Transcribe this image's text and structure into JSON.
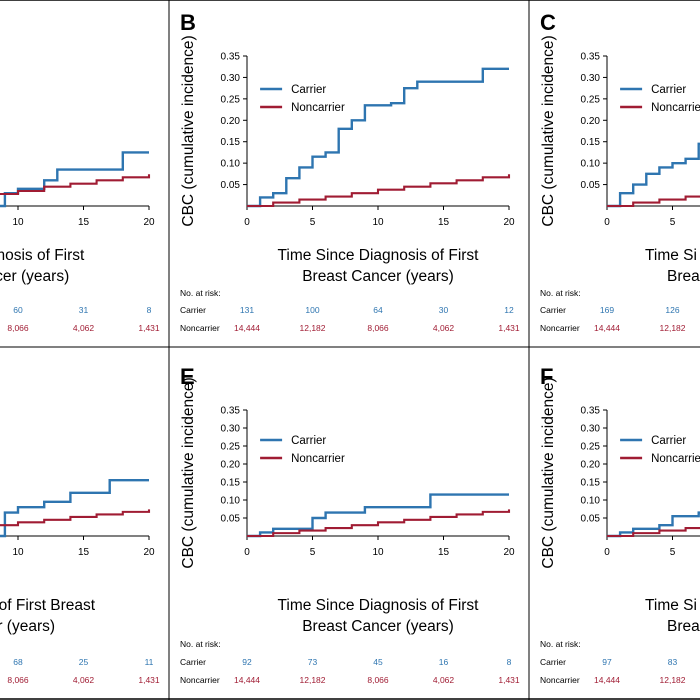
{
  "colors": {
    "carrier": "#2e75b0",
    "noncarrier": "#a01c33",
    "divider": "#000000"
  },
  "chart_data": [
    {
      "panel": "A",
      "type": "line",
      "visible_letter": false,
      "xlabel": [
        "e Diagnosis of First",
        "Cancer (years)"
      ],
      "ylabel": "",
      "xticks": [
        10,
        15,
        20
      ],
      "yticks": [],
      "xlim": [
        0,
        20
      ],
      "ylim": [
        0,
        0.35
      ],
      "legend": null,
      "series": [
        {
          "name": "Carrier",
          "steps": [
            [
              0,
              0
            ],
            [
              9,
              0.03
            ],
            [
              10,
              0.04
            ],
            [
              12,
              0.06
            ],
            [
              13,
              0.085
            ],
            [
              18,
              0.085
            ],
            [
              18,
              0.125
            ],
            [
              20,
              0.125
            ]
          ]
        },
        {
          "name": "Noncarrier",
          "steps": [
            [
              0,
              0
            ],
            [
              2,
              0.005
            ],
            [
              4,
              0.012
            ],
            [
              6,
              0.02
            ],
            [
              8,
              0.028
            ],
            [
              10,
              0.035
            ],
            [
              12,
              0.045
            ],
            [
              14,
              0.052
            ],
            [
              16,
              0.06
            ],
            [
              18,
              0.067
            ],
            [
              20,
              0.074
            ]
          ]
        }
      ],
      "risk": {
        "header": null,
        "rows": [
          {
            "label": null,
            "values": [
              "60",
              "31",
              "8"
            ]
          },
          {
            "label": null,
            "values": [
              "8,066",
              "4,062",
              "1,431"
            ]
          }
        ]
      }
    },
    {
      "panel": "B",
      "type": "line",
      "visible_letter": true,
      "xlabel": [
        "Time Since Diagnosis of First",
        "Breast Cancer (years)"
      ],
      "ylabel": "CBC (cumulative incidence)",
      "xticks": [
        0,
        5,
        10,
        15,
        20
      ],
      "yticks": [
        "0.05",
        "0.10",
        "0.15",
        "0.20",
        "0.25",
        "0.30",
        "0.35"
      ],
      "xlim": [
        0,
        20
      ],
      "ylim": [
        0,
        0.35
      ],
      "legend": [
        "Carrier",
        "Noncarrier"
      ],
      "series": [
        {
          "name": "Carrier",
          "steps": [
            [
              0,
              0
            ],
            [
              1,
              0
            ],
            [
              1,
              0.02
            ],
            [
              2,
              0.03
            ],
            [
              3,
              0.065
            ],
            [
              4,
              0.09
            ],
            [
              5,
              0.115
            ],
            [
              6,
              0.125
            ],
            [
              7,
              0.18
            ],
            [
              8,
              0.2
            ],
            [
              9,
              0.235
            ],
            [
              11,
              0.235
            ],
            [
              11,
              0.24
            ],
            [
              12,
              0.275
            ],
            [
              13,
              0.29
            ],
            [
              18,
              0.29
            ],
            [
              18,
              0.32
            ],
            [
              20,
              0.32
            ]
          ]
        },
        {
          "name": "Noncarrier",
          "steps": [
            [
              0,
              0
            ],
            [
              2,
              0.008
            ],
            [
              4,
              0.015
            ],
            [
              6,
              0.022
            ],
            [
              8,
              0.03
            ],
            [
              10,
              0.038
            ],
            [
              12,
              0.045
            ],
            [
              14,
              0.053
            ],
            [
              16,
              0.06
            ],
            [
              18,
              0.067
            ],
            [
              20,
              0.074
            ]
          ]
        }
      ],
      "risk": {
        "header": "No. at risk:",
        "rows": [
          {
            "label": "Carrier",
            "values": [
              "131",
              "100",
              "64",
              "30",
              "12"
            ]
          },
          {
            "label": "Noncarrier",
            "values": [
              "14,444",
              "12,182",
              "8,066",
              "4,062",
              "1,431"
            ]
          }
        ]
      }
    },
    {
      "panel": "C",
      "type": "line",
      "visible_letter": true,
      "xlabel": [
        "Time Si",
        "Brea"
      ],
      "ylabel": "CBC (cumulative incidence)",
      "xticks": [
        0,
        5
      ],
      "yticks": [
        "0.05",
        "0.10",
        "0.15",
        "0.20",
        "0.25",
        "0.30",
        "0.35"
      ],
      "xlim": [
        0,
        20
      ],
      "ylim": [
        0,
        0.35
      ],
      "legend": [
        "Carrier",
        "Noncarrier"
      ],
      "series": [
        {
          "name": "Carrier",
          "steps": [
            [
              0,
              0
            ],
            [
              1,
              0
            ],
            [
              1,
              0.03
            ],
            [
              2,
              0.05
            ],
            [
              3,
              0.075
            ],
            [
              4,
              0.09
            ],
            [
              5,
              0.1
            ],
            [
              6,
              0.11
            ],
            [
              7,
              0.11
            ],
            [
              7,
              0.145
            ],
            [
              8,
              0.145
            ]
          ]
        },
        {
          "name": "Noncarrier",
          "steps": [
            [
              0,
              0
            ],
            [
              2,
              0.008
            ],
            [
              4,
              0.015
            ],
            [
              6,
              0.022
            ],
            [
              8,
              0.03
            ]
          ]
        }
      ],
      "risk": {
        "header": "No. at risk:",
        "rows": [
          {
            "label": "Carrier",
            "values": [
              "169",
              "126"
            ]
          },
          {
            "label": "Noncarrier",
            "values": [
              "14,444",
              "12,182"
            ]
          }
        ]
      }
    },
    {
      "panel": "D",
      "type": "line",
      "visible_letter": false,
      "xlabel": [
        "agnosis of First Breast",
        "cer (years)"
      ],
      "ylabel": "",
      "xticks": [
        10,
        15,
        20
      ],
      "yticks": [],
      "xlim": [
        0,
        20
      ],
      "ylim": [
        0,
        0.35
      ],
      "legend": null,
      "series": [
        {
          "name": "Carrier",
          "steps": [
            [
              0,
              0
            ],
            [
              9,
              0.065
            ],
            [
              10,
              0.08
            ],
            [
              12,
              0.08
            ],
            [
              12,
              0.095
            ],
            [
              14,
              0.12
            ],
            [
              17,
              0.12
            ],
            [
              17,
              0.155
            ],
            [
              20,
              0.155
            ]
          ]
        },
        {
          "name": "Noncarrier",
          "steps": [
            [
              0,
              0
            ],
            [
              2,
              0.008
            ],
            [
              4,
              0.015
            ],
            [
              6,
              0.022
            ],
            [
              8,
              0.03
            ],
            [
              10,
              0.038
            ],
            [
              12,
              0.045
            ],
            [
              14,
              0.053
            ],
            [
              16,
              0.06
            ],
            [
              18,
              0.067
            ],
            [
              20,
              0.074
            ]
          ]
        }
      ],
      "risk": {
        "header": null,
        "rows": [
          {
            "label": null,
            "values": [
              "68",
              "25",
              "11"
            ]
          },
          {
            "label": null,
            "values": [
              "8,066",
              "4,062",
              "1,431"
            ]
          }
        ]
      }
    },
    {
      "panel": "E",
      "type": "line",
      "visible_letter": true,
      "xlabel": [
        "Time Since Diagnosis of First",
        "Breast Cancer (years)"
      ],
      "ylabel": "CBC (cumulative incidence)",
      "xticks": [
        0,
        5,
        10,
        15,
        20
      ],
      "yticks": [
        "0.05",
        "0.10",
        "0.15",
        "0.20",
        "0.25",
        "0.30",
        "0.35"
      ],
      "xlim": [
        0,
        20
      ],
      "ylim": [
        0,
        0.35
      ],
      "legend": [
        "Carrier",
        "Noncarrier"
      ],
      "series": [
        {
          "name": "Carrier",
          "steps": [
            [
              0,
              0
            ],
            [
              1,
              0
            ],
            [
              1,
              0.01
            ],
            [
              2,
              0.02
            ],
            [
              5,
              0.05
            ],
            [
              6,
              0.065
            ],
            [
              9,
              0.08
            ],
            [
              14,
              0.08
            ],
            [
              14,
              0.115
            ],
            [
              20,
              0.115
            ]
          ]
        },
        {
          "name": "Noncarrier",
          "steps": [
            [
              0,
              0
            ],
            [
              2,
              0.008
            ],
            [
              4,
              0.015
            ],
            [
              6,
              0.022
            ],
            [
              8,
              0.03
            ],
            [
              10,
              0.038
            ],
            [
              12,
              0.045
            ],
            [
              14,
              0.053
            ],
            [
              16,
              0.06
            ],
            [
              18,
              0.067
            ],
            [
              20,
              0.074
            ]
          ]
        }
      ],
      "risk": {
        "header": "No. at risk:",
        "rows": [
          {
            "label": "Carrier",
            "values": [
              "92",
              "73",
              "45",
              "16",
              "8"
            ]
          },
          {
            "label": "Noncarrier",
            "values": [
              "14,444",
              "12,182",
              "8,066",
              "4,062",
              "1,431"
            ]
          }
        ]
      }
    },
    {
      "panel": "F",
      "type": "line",
      "visible_letter": true,
      "xlabel": [
        "Time Si",
        "Brea"
      ],
      "ylabel": "CBC (cumulative incidence)",
      "xticks": [
        0,
        5
      ],
      "yticks": [
        "0.05",
        "0.10",
        "0.15",
        "0.20",
        "0.25",
        "0.30",
        "0.35"
      ],
      "xlim": [
        0,
        20
      ],
      "ylim": [
        0,
        0.35
      ],
      "legend": [
        "Carrier",
        "Noncarrier"
      ],
      "series": [
        {
          "name": "Carrier",
          "steps": [
            [
              0,
              0
            ],
            [
              1,
              0
            ],
            [
              1,
              0.01
            ],
            [
              2,
              0.02
            ],
            [
              4,
              0.03
            ],
            [
              5,
              0.055
            ],
            [
              6,
              0.055
            ],
            [
              7,
              0.065
            ],
            [
              8,
              0.065
            ]
          ]
        },
        {
          "name": "Noncarrier",
          "steps": [
            [
              0,
              0
            ],
            [
              2,
              0.008
            ],
            [
              4,
              0.015
            ],
            [
              6,
              0.022
            ],
            [
              8,
              0.03
            ]
          ]
        }
      ],
      "risk": {
        "header": "No. at risk:",
        "rows": [
          {
            "label": "Carrier",
            "values": [
              "97",
              "83"
            ]
          },
          {
            "label": "Noncarrier",
            "values": [
              "14,444",
              "12,182"
            ]
          }
        ]
      }
    }
  ]
}
